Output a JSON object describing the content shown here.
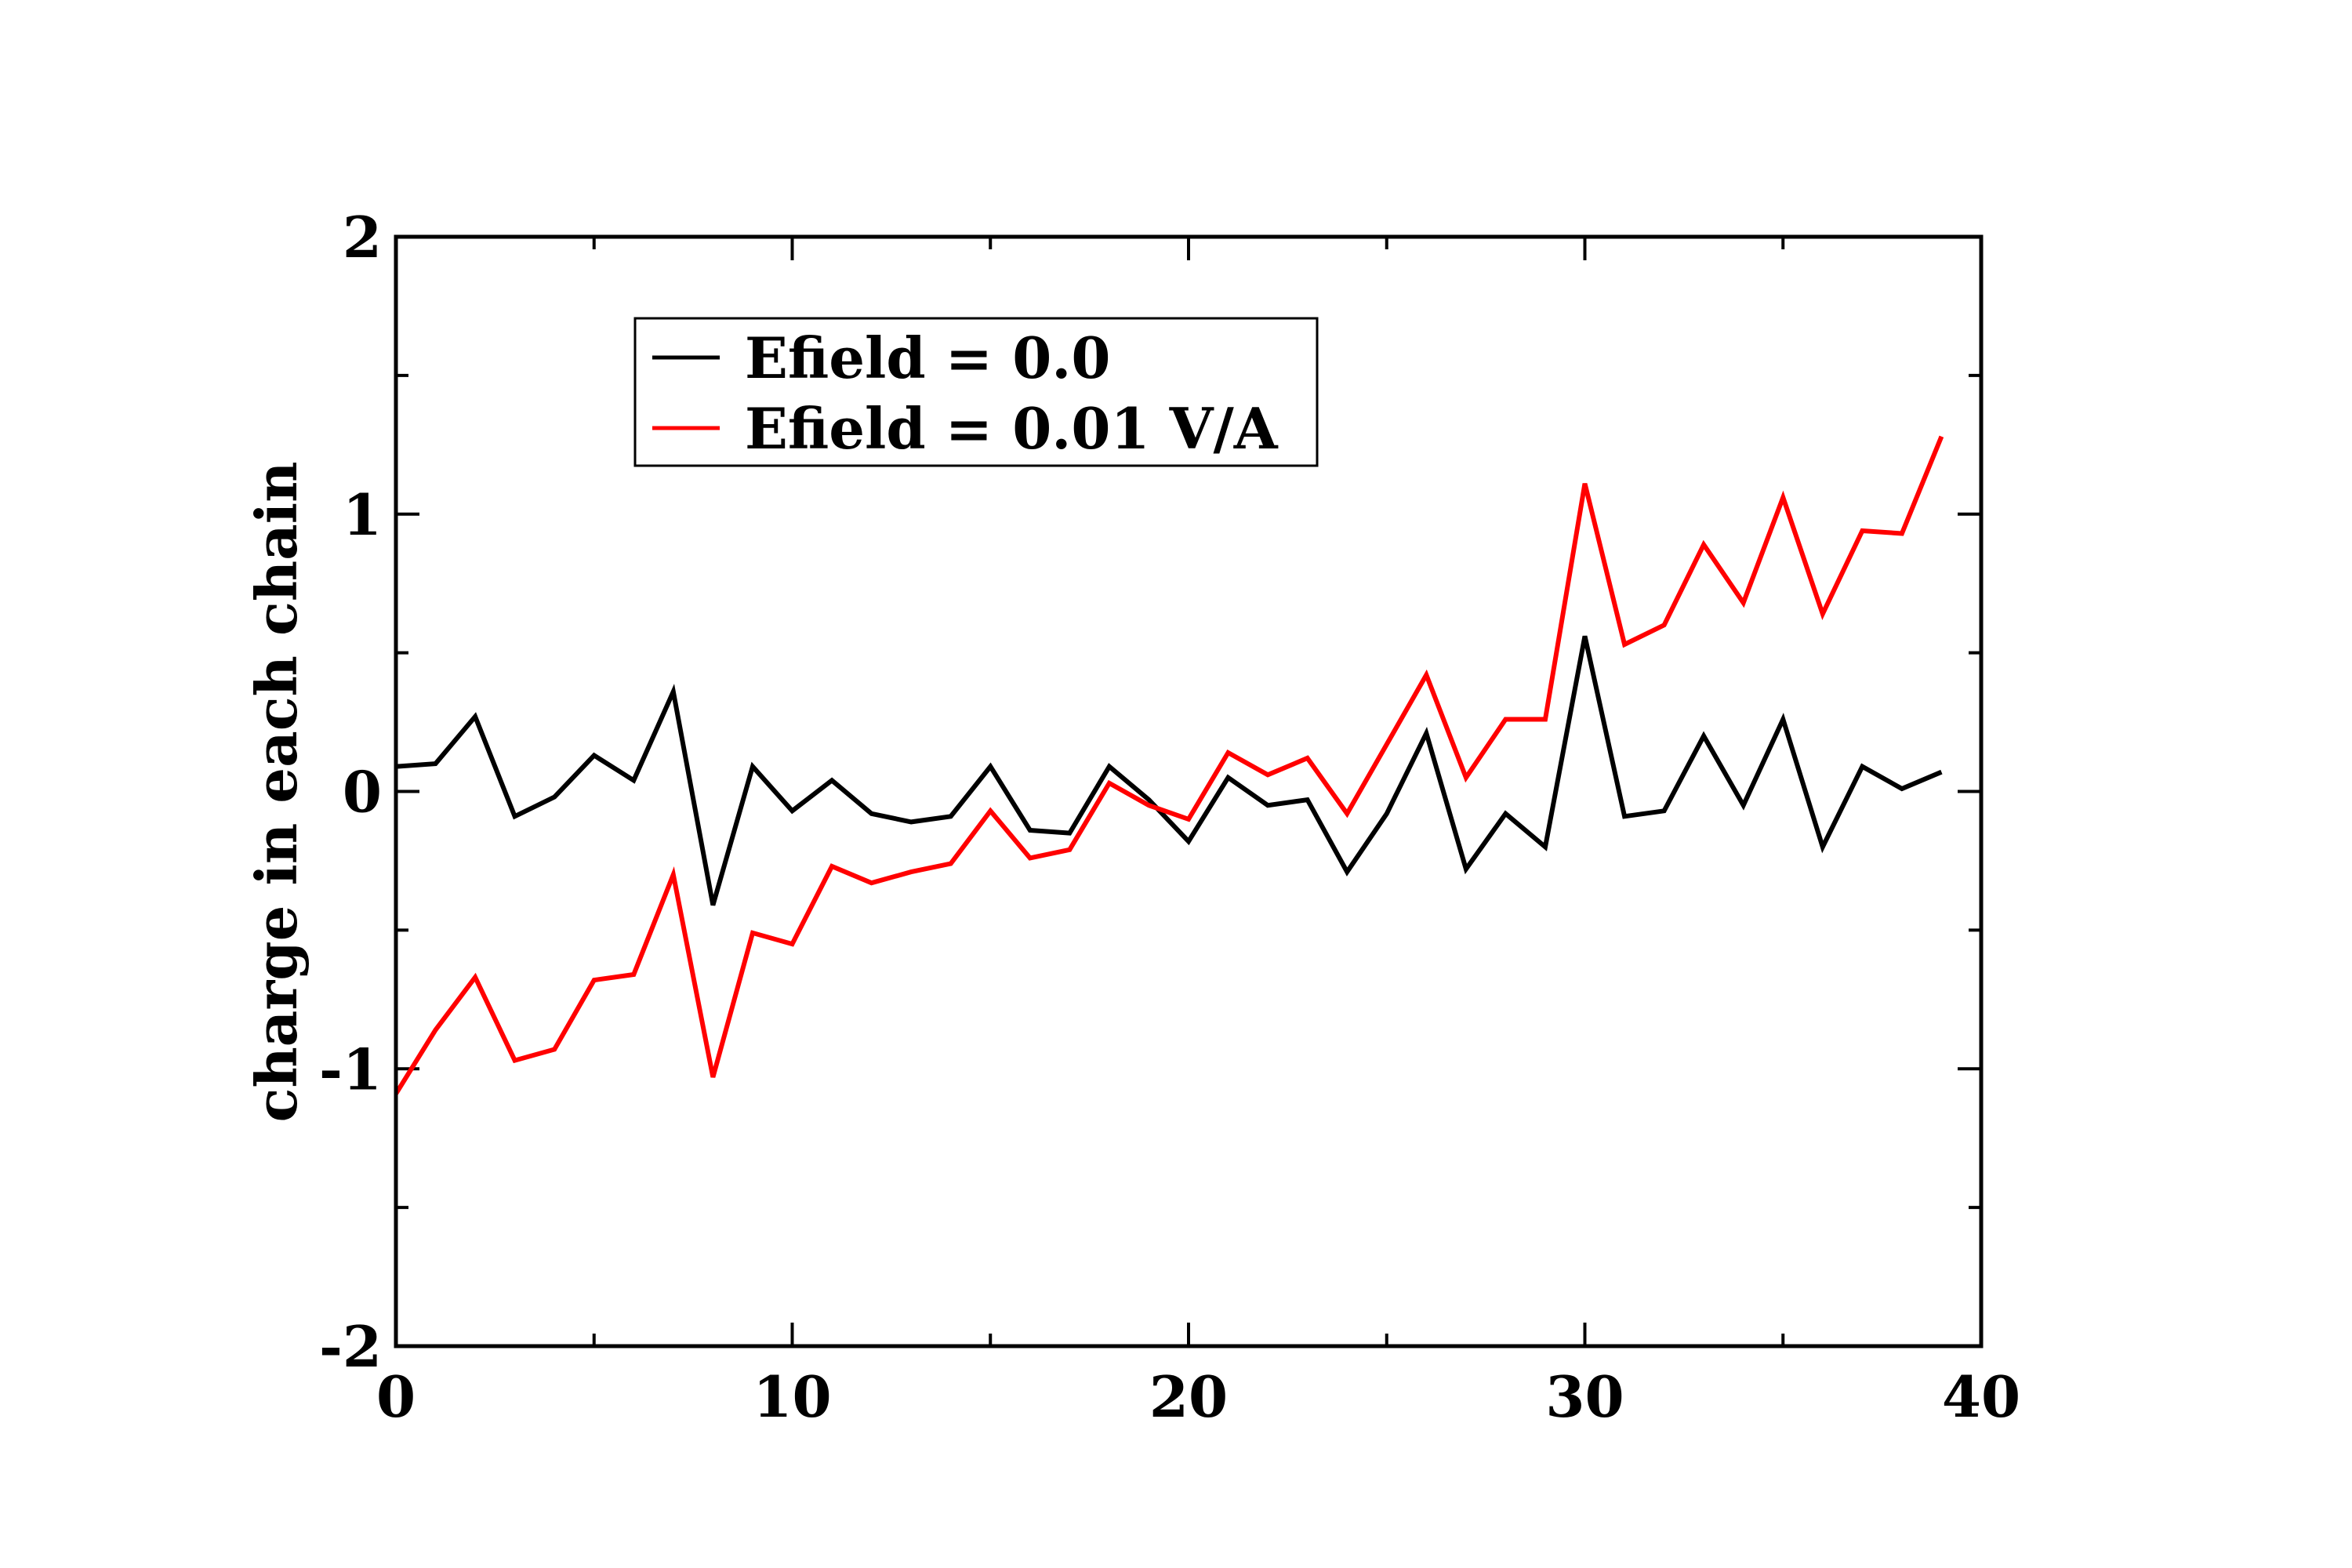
{
  "chart_data": {
    "type": "line",
    "title": "",
    "xlabel": "",
    "ylabel": "charge in each chain",
    "xlim": [
      0,
      40
    ],
    "ylim": [
      -2,
      2
    ],
    "x_ticks": [
      "0",
      "10",
      "20",
      "30",
      "40"
    ],
    "y_ticks": [
      "-2",
      "-1",
      "0",
      "1",
      "2"
    ],
    "grid": false,
    "legend_position": "top-left",
    "x": [
      0,
      1,
      2,
      3,
      4,
      5,
      6,
      7,
      8,
      9,
      10,
      11,
      12,
      13,
      14,
      15,
      16,
      17,
      18,
      19,
      20,
      21,
      22,
      23,
      24,
      25,
      26,
      27,
      28,
      29,
      30,
      31,
      32,
      33,
      34,
      35,
      36,
      37,
      38,
      39
    ],
    "series": [
      {
        "name": "Efield = 0.0",
        "color": "#000000",
        "values": [
          0.09,
          0.1,
          0.27,
          -0.09,
          -0.02,
          0.13,
          0.04,
          0.36,
          -0.41,
          0.09,
          -0.07,
          0.04,
          -0.08,
          -0.11,
          -0.09,
          0.09,
          -0.14,
          -0.15,
          0.09,
          -0.03,
          -0.18,
          0.05,
          -0.05,
          -0.03,
          -0.29,
          -0.08,
          0.21,
          -0.28,
          -0.08,
          -0.2,
          0.56,
          -0.09,
          -0.07,
          0.2,
          -0.05,
          0.26,
          -0.2,
          0.09,
          0.01,
          0.07
        ]
      },
      {
        "name": "Efield = 0.01 V/A",
        "color": "#ff0000",
        "values": [
          -1.09,
          -0.86,
          -0.67,
          -0.97,
          -0.93,
          -0.68,
          -0.66,
          -0.3,
          -1.03,
          -0.51,
          -0.55,
          -0.27,
          -0.33,
          -0.29,
          -0.26,
          -0.07,
          -0.24,
          -0.21,
          0.03,
          -0.05,
          -0.1,
          0.14,
          0.06,
          0.12,
          -0.08,
          0.17,
          0.42,
          0.05,
          0.26,
          0.26,
          1.11,
          0.53,
          0.6,
          0.89,
          0.68,
          1.06,
          0.64,
          0.94,
          0.93,
          1.28
        ]
      }
    ]
  }
}
